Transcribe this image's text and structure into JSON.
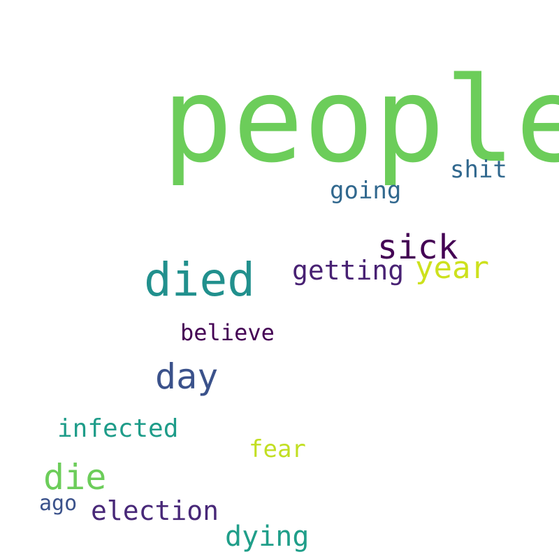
{
  "words": [
    {
      "id": "people",
      "text": "people",
      "color": "#6ccd5a"
    },
    {
      "id": "shit",
      "text": "shit",
      "color": "#31688e"
    },
    {
      "id": "going",
      "text": "going",
      "color": "#31688e"
    },
    {
      "id": "sick",
      "text": "sick",
      "color": "#440154"
    },
    {
      "id": "year",
      "text": "year",
      "color": "#cde11d"
    },
    {
      "id": "died",
      "text": "died",
      "color": "#21908d"
    },
    {
      "id": "getting",
      "text": "getting",
      "color": "#482173"
    },
    {
      "id": "believe",
      "text": "believe",
      "color": "#440154"
    },
    {
      "id": "day",
      "text": "day",
      "color": "#3b528b"
    },
    {
      "id": "infected",
      "text": "infected",
      "color": "#1e9c89"
    },
    {
      "id": "fear",
      "text": "fear",
      "color": "#c2df23"
    },
    {
      "id": "die",
      "text": "die",
      "color": "#6ccd5a"
    },
    {
      "id": "ago",
      "text": "ago",
      "color": "#3b528b"
    },
    {
      "id": "election",
      "text": "election",
      "color": "#482878"
    },
    {
      "id": "dying",
      "text": "dying",
      "color": "#1f9e89"
    }
  ]
}
